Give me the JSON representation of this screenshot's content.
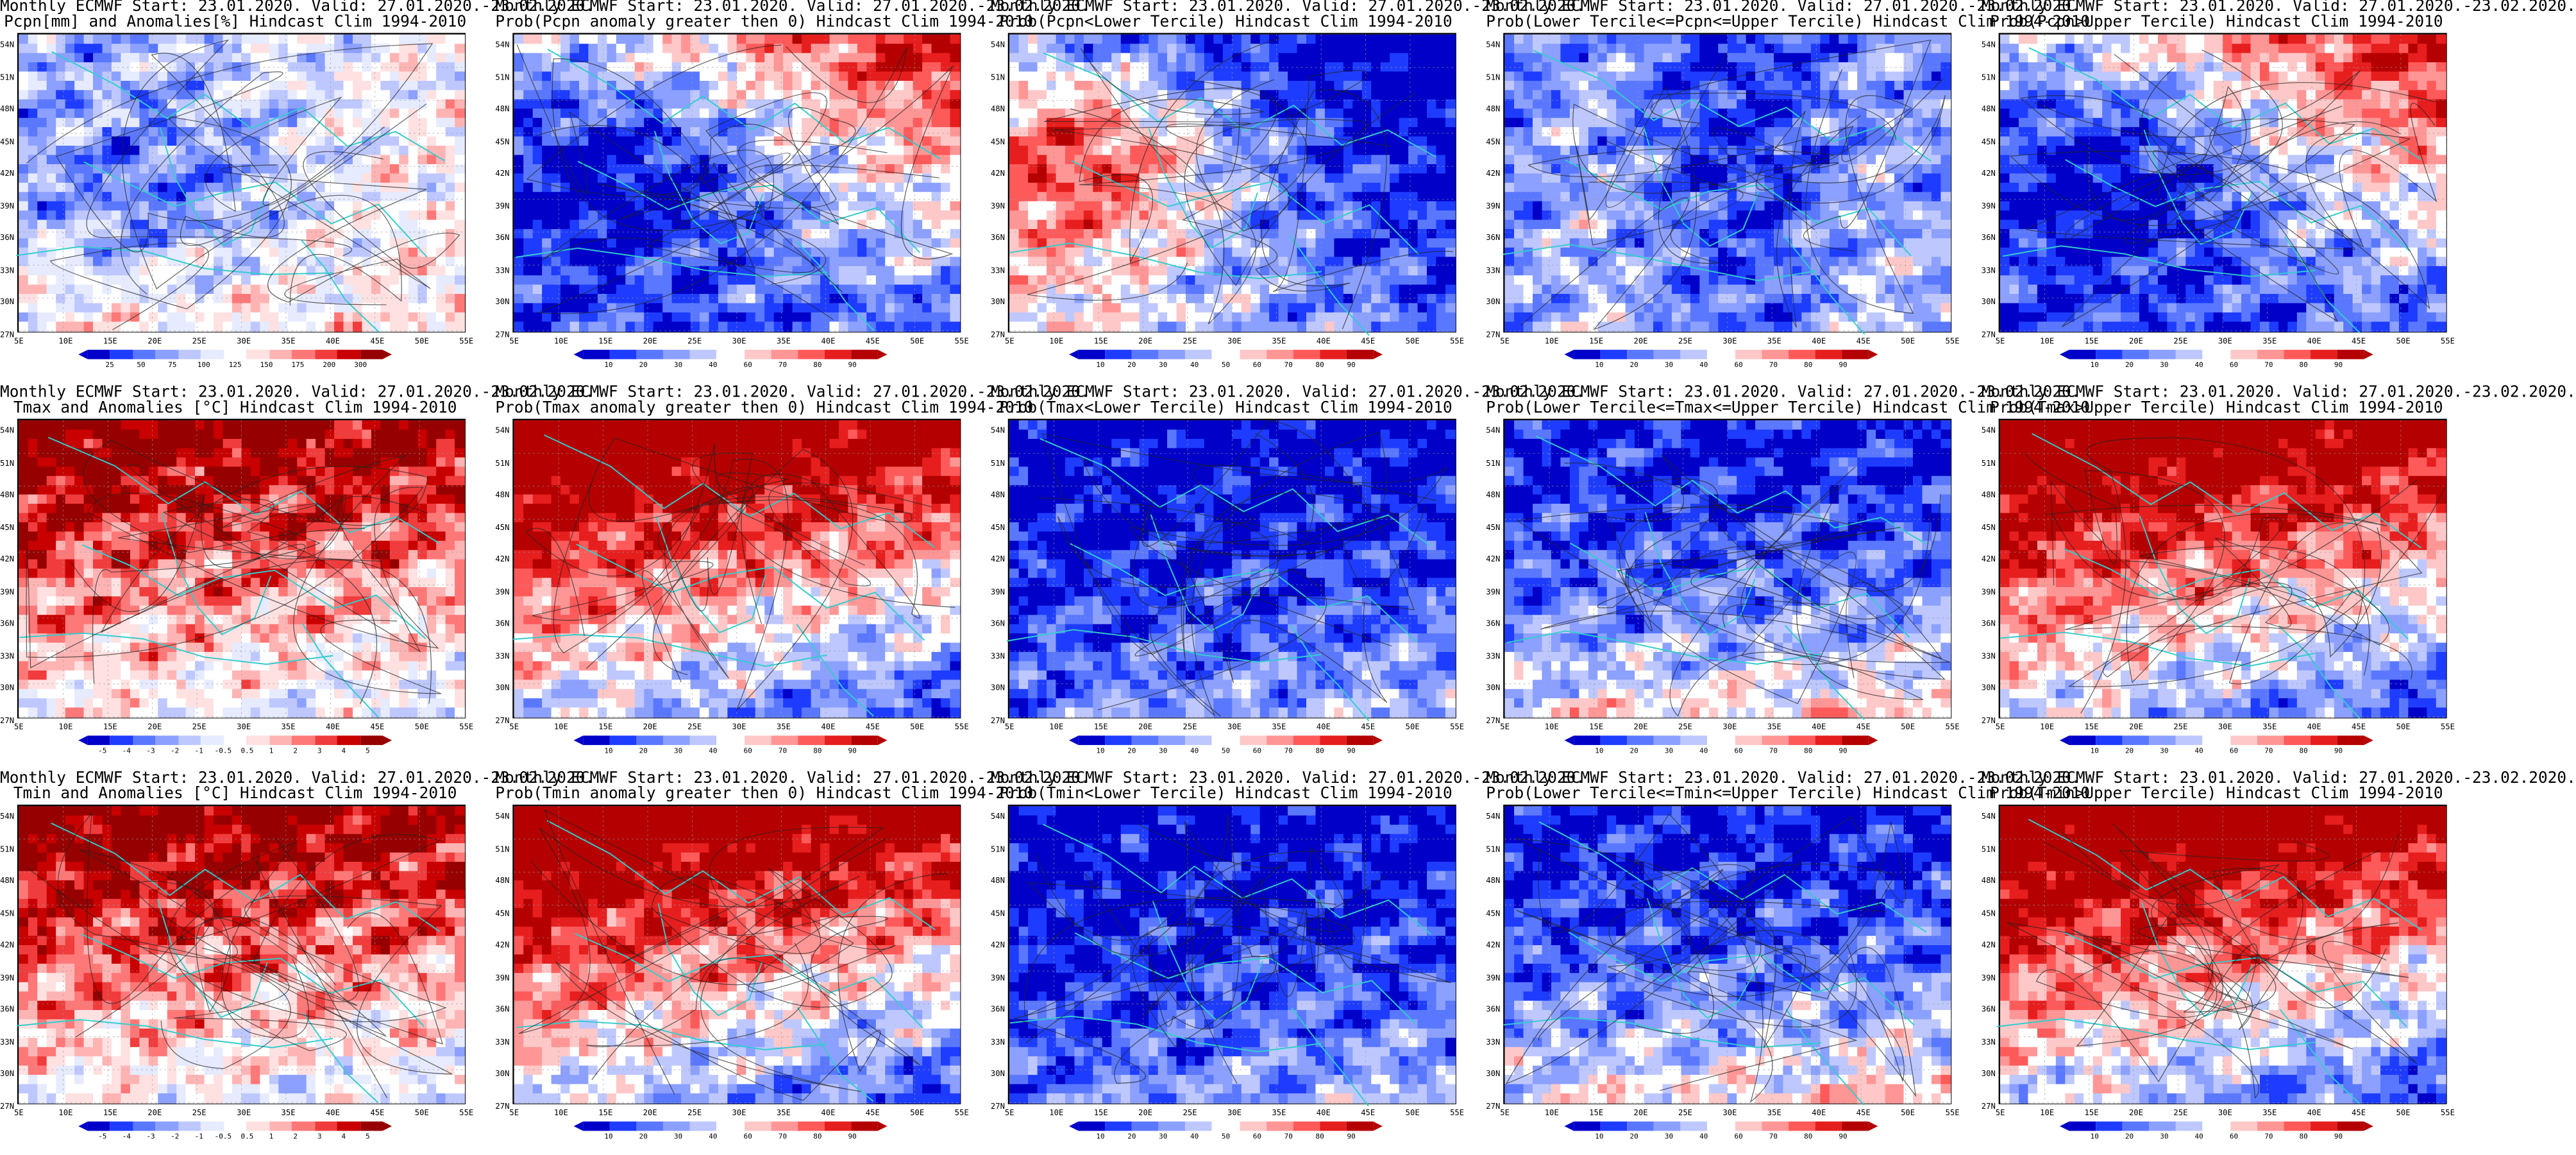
{
  "maps": [
    {
      "title1": "Monthly ECMWF Start: 23.01.2020. Valid: 27.01.2020.-23.02.2020.",
      "title2": "Pcpn[mm] and Anomalies[%] Hindcast Clim 1994-2010",
      "scale": "anom",
      "pattern": "pcpn_anom",
      "colorbar": [
        "25",
        "50",
        "75",
        "100",
        "125",
        "150",
        "175",
        "200",
        "300"
      ]
    },
    {
      "title1": "Monthly ECMWF Start: 23.01.2020. Valid: 27.01.2020.-23.02.2020.",
      "title2": "Prob(Pcpn anomaly greater then 0) Hindcast Clim 1994-2010",
      "scale": "prob",
      "pattern": "pcpn_high",
      "colorbar": [
        "10",
        "20",
        "30",
        "40",
        "60",
        "70",
        "80",
        "90"
      ]
    },
    {
      "title1": "Monthly ECMWF Start: 23.01.2020. Valid: 27.01.2020.-23.02.2020.",
      "title2": "Prob(Pcpn<Lower Tercile) Hindcast Clim 1994-2010",
      "scale": "prob",
      "pattern": "pcpn_low",
      "colorbar": [
        "10",
        "20",
        "30",
        "40",
        "50",
        "60",
        "70",
        "80",
        "90"
      ]
    },
    {
      "title1": "Monthly ECMWF Start: 23.01.2020. Valid: 27.01.2020.-23.02.2020.",
      "title2": "Prob(Lower Tercile<=Pcpn<=Upper Tercile) Hindcast Clim 1994-2010",
      "scale": "prob",
      "pattern": "mid",
      "colorbar": [
        "10",
        "20",
        "30",
        "40",
        "60",
        "70",
        "80",
        "90"
      ]
    },
    {
      "title1": "Monthly ECMWF Start: 23.01.2020. Valid: 27.01.2020.-23.02.2020.",
      "title2": "Prob(Pcpn>Upper Tercile) Hindcast Clim 1994-2010",
      "scale": "prob",
      "pattern": "pcpn_high",
      "colorbar": [
        "10",
        "20",
        "30",
        "40",
        "60",
        "70",
        "80",
        "90"
      ]
    },
    {
      "title1": "Monthly ECMWF Start: 23.01.2020. Valid: 27.01.2020.-23.02.2020.",
      "title2": "Tmax and Anomalies [°C] Hindcast Clim 1994-2010",
      "scale": "anom",
      "pattern": "t_anom",
      "colorbar": [
        "-5",
        "-4",
        "-3",
        "-2",
        "-1",
        "-0.5",
        "0.5",
        "1",
        "2",
        "3",
        "4",
        "5"
      ]
    },
    {
      "title1": "Monthly ECMWF Start: 23.01.2020. Valid: 27.01.2020.-23.02.2020.",
      "title2": "Prob(Tmax anomaly greater then 0) Hindcast Clim 1994-2010",
      "scale": "prob",
      "pattern": "t_high",
      "colorbar": [
        "10",
        "20",
        "30",
        "40",
        "60",
        "70",
        "80",
        "90"
      ]
    },
    {
      "title1": "Monthly ECMWF Start: 23.01.2020. Valid: 27.01.2020.-23.02.2020.",
      "title2": "Prob(Tmax<Lower Tercile) Hindcast Clim 1994-2010",
      "scale": "prob",
      "pattern": "t_low",
      "colorbar": [
        "10",
        "20",
        "30",
        "40",
        "50",
        "60",
        "70",
        "80",
        "90"
      ]
    },
    {
      "title1": "Monthly ECMWF Start: 23.01.2020. Valid: 27.01.2020.-23.02.2020.",
      "title2": "Prob(Lower Tercile<=Tmax<=Upper Tercile) Hindcast Clim 1994-2010",
      "scale": "prob",
      "pattern": "t_mid",
      "colorbar": [
        "10",
        "20",
        "30",
        "40",
        "60",
        "70",
        "80",
        "90"
      ]
    },
    {
      "title1": "Monthly ECMWF Start: 23.01.2020. Valid: 27.01.2020.-23.02.2020.",
      "title2": "Prob(Tmax>Upper Tercile) Hindcast Clim 1994-2010",
      "scale": "prob",
      "pattern": "t_high",
      "colorbar": [
        "10",
        "20",
        "30",
        "40",
        "60",
        "70",
        "80",
        "90"
      ]
    },
    {
      "title1": "Monthly ECMWF Start: 23.01.2020. Valid: 27.01.2020.-23.02.2020.",
      "title2": "Tmin and Anomalies [°C] Hindcast Clim 1994-2010",
      "scale": "anom",
      "pattern": "t_anom",
      "colorbar": [
        "-5",
        "-4",
        "-3",
        "-2",
        "-1",
        "-0.5",
        "0.5",
        "1",
        "2",
        "3",
        "4",
        "5"
      ]
    },
    {
      "title1": "Monthly ECMWF Start: 23.01.2020. Valid: 27.01.2020.-23.02.2020.",
      "title2": "Prob(Tmin anomaly greater then 0) Hindcast Clim 1994-2010",
      "scale": "prob",
      "pattern": "t_high",
      "colorbar": [
        "10",
        "20",
        "30",
        "40",
        "60",
        "70",
        "80",
        "90"
      ]
    },
    {
      "title1": "Monthly ECMWF Start: 23.01.2020. Valid: 27.01.2020.-23.02.2020.",
      "title2": "Prob(Tmin<Lower Tercile) Hindcast Clim 1994-2010",
      "scale": "prob",
      "pattern": "t_low",
      "colorbar": [
        "10",
        "20",
        "30",
        "40",
        "50",
        "60",
        "70",
        "80",
        "90"
      ]
    },
    {
      "title1": "Monthly ECMWF Start: 23.01.2020. Valid: 27.01.2020.-23.02.2020.",
      "title2": "Prob(Lower Tercile<=Tmin<=Upper Tercile) Hindcast Clim 1994-2010",
      "scale": "prob",
      "pattern": "t_mid",
      "colorbar": [
        "10",
        "20",
        "30",
        "40",
        "60",
        "70",
        "80",
        "90"
      ]
    },
    {
      "title1": "Monthly ECMWF Start: 23.01.2020. Valid: 27.01.2020.-23.02.2020.",
      "title2": "Prob(Tmin>Upper Tercile) Hindcast Clim 1994-2010",
      "scale": "prob",
      "pattern": "t_high",
      "colorbar": [
        "10",
        "20",
        "30",
        "40",
        "60",
        "70",
        "80",
        "90"
      ]
    }
  ],
  "lat_labels": [
    "54N",
    "51N",
    "48N",
    "45N",
    "42N",
    "39N",
    "36N",
    "33N",
    "30N",
    "27N"
  ],
  "lon_labels": [
    "5E",
    "10E",
    "15E",
    "20E",
    "25E",
    "30E",
    "35E",
    "40E",
    "45E",
    "50E",
    "55E"
  ],
  "colors": {
    "prob": [
      "#0000c8",
      "#1e3cff",
      "#5a78ff",
      "#8ca0ff",
      "#bec8ff",
      "#ffffff",
      "#ffc8c8",
      "#ff9696",
      "#ff5a5a",
      "#e61e1e",
      "#b40000"
    ],
    "anom": [
      "#0000c8",
      "#1e3cff",
      "#5a78ff",
      "#8ca0ff",
      "#bec8ff",
      "#e6ebff",
      "#ffffff",
      "#ffe1e1",
      "#ffb4b4",
      "#ff7878",
      "#f03c3c",
      "#c80000",
      "#960000"
    ],
    "coast": "#33cccc"
  }
}
